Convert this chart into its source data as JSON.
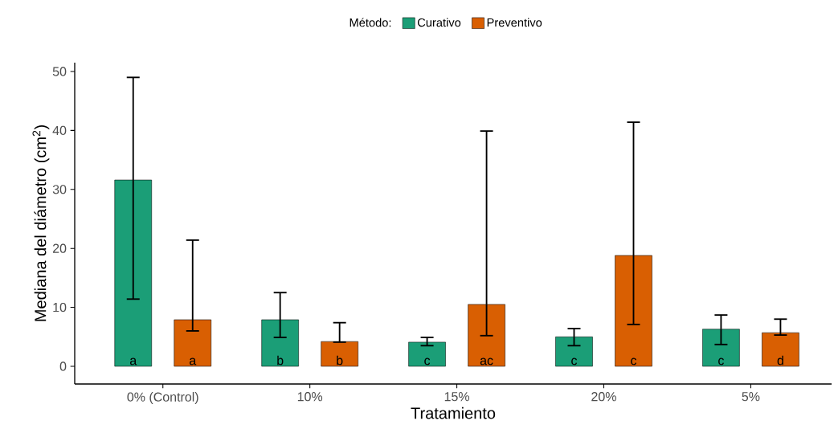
{
  "chart_data": {
    "type": "bar",
    "xlabel": "Tratamiento",
    "ylabel": "Mediana del diámetro (cm$^{2}$)",
    "legend_title": "Método:",
    "legend": "top",
    "grid": false,
    "categories": [
      "0% (Control)",
      "10%",
      "15%",
      "20%",
      "5%"
    ],
    "ylim": [
      -3,
      51.5
    ],
    "yticks": [
      0,
      10,
      20,
      30,
      40,
      50
    ],
    "series": [
      {
        "name": "Curativo",
        "color": "#1b9e77",
        "values": [
          31.6,
          7.9,
          4.1,
          5.0,
          6.3
        ],
        "errors": [
          [
            11.4,
            49.0
          ],
          [
            4.9,
            12.5
          ],
          [
            3.5,
            4.9
          ],
          [
            3.5,
            6.4
          ],
          [
            3.7,
            8.7
          ]
        ],
        "value_labels": [
          "a",
          "b",
          "c",
          "c",
          "c"
        ]
      },
      {
        "name": "Preventivo",
        "color": "#d95f02",
        "values": [
          7.9,
          4.2,
          10.5,
          18.8,
          5.7
        ],
        "errors": [
          [
            6.0,
            21.4
          ],
          [
            4.1,
            7.4
          ],
          [
            5.2,
            39.9
          ],
          [
            7.1,
            41.4
          ],
          [
            5.3,
            8.0
          ]
        ],
        "value_labels": [
          "a",
          "b",
          "ac",
          "c",
          "d"
        ]
      }
    ]
  }
}
